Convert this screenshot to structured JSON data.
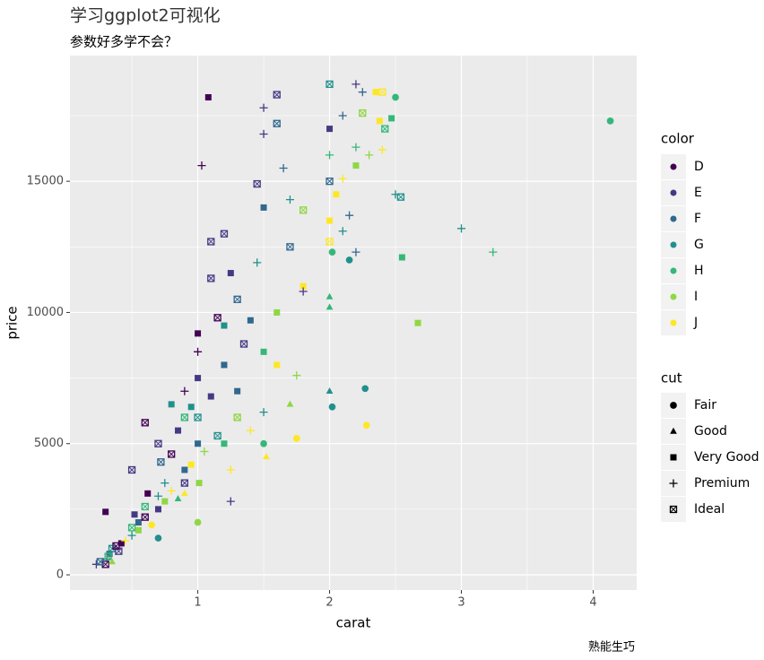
{
  "chart_data": {
    "type": "scatter",
    "title": "学习ggplot2可视化",
    "subtitle": "参数好多学不会？",
    "caption": "熟能生巧",
    "x_label": "carat",
    "y_label": "price",
    "xlim": [
      0.03,
      4.33
    ],
    "ylim": [
      -580,
      19790
    ],
    "xticks": [
      1,
      2,
      3,
      4
    ],
    "yticks": [
      0,
      5000,
      10000,
      15000
    ],
    "grid": true,
    "minor_grid": true,
    "color_legend": {
      "title": "color",
      "names": [
        "D",
        "E",
        "F",
        "G",
        "H",
        "I",
        "J"
      ],
      "colors": [
        "#440154",
        "#443A83",
        "#31688E",
        "#21908C",
        "#35B779",
        "#8FD744",
        "#FDE725"
      ]
    },
    "cut_legend": {
      "title": "cut",
      "names": [
        "Fair",
        "Good",
        "Very Good",
        "Premium",
        "Ideal"
      ],
      "shapes": [
        "circle",
        "triangle",
        "square",
        "plus",
        "square-cross"
      ]
    },
    "x": [
      0.3,
      0.31,
      0.33,
      0.35,
      0.4,
      0.42,
      0.5,
      0.5,
      0.55,
      0.6,
      0.7,
      0.7,
      0.75,
      0.8,
      0.9,
      0.9,
      0.3,
      0.5,
      0.6,
      0.7,
      0.8,
      0.9,
      0.9,
      1.0,
      1.0,
      1.0,
      1.0,
      1.0,
      1.01,
      1.0,
      1.03,
      1.08,
      1.1,
      1.1,
      1.2,
      1.2,
      1.2,
      1.25,
      1.3,
      1.3,
      1.3,
      1.2,
      1.25,
      1.4,
      1.45,
      1.5,
      1.5,
      1.5,
      1.5,
      1.5,
      1.5,
      1.52,
      1.6,
      1.6,
      1.65,
      1.6,
      1.6,
      1.7,
      1.7,
      1.75,
      1.8,
      1.8,
      1.8,
      1.75,
      1.7,
      2.0,
      2.0,
      2.0,
      2.0,
      2.0,
      2.0,
      2.0,
      2.0,
      2.0,
      2.02,
      2.02,
      2.05,
      2.1,
      2.1,
      2.1,
      2.15,
      2.15,
      2.2,
      2.2,
      2.2,
      2.2,
      2.25,
      2.25,
      2.27,
      2.28,
      2.3,
      2.35,
      2.38,
      2.4,
      2.4,
      2.42,
      2.47,
      2.5,
      2.5,
      2.54,
      2.55,
      2.67,
      3.0,
      3.24,
      4.13,
      0.23,
      0.26,
      0.32,
      0.35,
      0.38,
      0.45,
      0.52,
      0.55,
      0.6,
      0.62,
      0.65,
      0.72,
      0.75,
      0.8,
      0.85,
      0.85,
      0.95,
      0.95,
      1.05,
      1.1,
      1.15,
      1.15,
      1.25,
      1.35,
      1.4,
      1.45,
      0.9,
      0.7
    ],
    "y": [
      400,
      600,
      800,
      1000,
      900,
      1200,
      1500,
      1800,
      2000,
      2200,
      2500,
      3000,
      2800,
      3200,
      3500,
      4000,
      2400,
      4000,
      5800,
      5000,
      6500,
      6000,
      7000,
      5000,
      6000,
      7500,
      8500,
      9200,
      3500,
      2000,
      15600,
      18200,
      12700,
      11300,
      9500,
      8000,
      5000,
      4000,
      7000,
      10500,
      6000,
      13000,
      2800,
      5500,
      14900,
      14000,
      17800,
      16800,
      8500,
      6200,
      5000,
      4500,
      18300,
      17200,
      15500,
      10000,
      8000,
      14300,
      12500,
      7600,
      13900,
      11000,
      10800,
      5200,
      6500,
      18700,
      17000,
      16000,
      15000,
      13500,
      12700,
      10600,
      10200,
      7000,
      6400,
      12300,
      14500,
      13100,
      15100,
      17500,
      12000,
      13700,
      16300,
      15600,
      12300,
      18700,
      18400,
      17600,
      7100,
      5700,
      16000,
      18400,
      17300,
      16200,
      18400,
      17000,
      17400,
      18200,
      14500,
      14400,
      12100,
      9600,
      13200,
      12300,
      17300,
      400,
      500,
      700,
      500,
      1100,
      1300,
      2300,
      1700,
      2600,
      3100,
      1900,
      4300,
      3500,
      4600,
      2900,
      5500,
      4200,
      6400,
      4700,
      6800,
      5300,
      9800,
      11500,
      8800,
      9700,
      11900,
      3100,
      1400
    ],
    "point_color": [
      "D",
      "E",
      "F",
      "G",
      "E",
      "D",
      "G",
      "H",
      "F",
      "D",
      "E",
      "G",
      "I",
      "J",
      "E",
      "F",
      "D",
      "E",
      "D",
      "E",
      "G",
      "H",
      "D",
      "F",
      "G",
      "E",
      "D",
      "D",
      "I",
      "I",
      "D",
      "D",
      "E",
      "E",
      "G",
      "F",
      "H",
      "J",
      "F",
      "F",
      "I",
      "E",
      "E",
      "J",
      "E",
      "F",
      "E",
      "E",
      "H",
      "G",
      "H",
      "J",
      "E",
      "F",
      "F",
      "I",
      "J",
      "G",
      "F",
      "I",
      "I",
      "J",
      "E",
      "J",
      "I",
      "G",
      "E",
      "H",
      "F",
      "J",
      "J",
      "H",
      "H",
      "G",
      "G",
      "H",
      "J",
      "G",
      "J",
      "F",
      "G",
      "F",
      "H",
      "I",
      "F",
      "E",
      "F",
      "I",
      "G",
      "J",
      "I",
      "J",
      "J",
      "J",
      "J",
      "H",
      "H",
      "H",
      "G",
      "G",
      "H",
      "I",
      "G",
      "H",
      "H",
      "E",
      "F",
      "H",
      "I",
      "D",
      "J",
      "E",
      "I",
      "H",
      "D",
      "J",
      "F",
      "G",
      "D",
      "H",
      "E",
      "J",
      "G",
      "I",
      "E",
      "G",
      "D",
      "E",
      "E",
      "F",
      "G",
      "J",
      "G"
    ],
    "point_cut": [
      "Ideal",
      "Premium",
      "Very Good",
      "Ideal",
      "Ideal",
      "Very Good",
      "Premium",
      "Ideal",
      "Very Good",
      "Ideal",
      "Very Good",
      "Premium",
      "Very Good",
      "Premium",
      "Ideal",
      "Very Good",
      "Very Good",
      "Ideal",
      "Ideal",
      "Ideal",
      "Very Good",
      "Ideal",
      "Premium",
      "Very Good",
      "Ideal",
      "Very Good",
      "Premium",
      "Very Good",
      "Very Good",
      "Fair",
      "Premium",
      "Very Good",
      "Ideal",
      "Ideal",
      "Very Good",
      "Very Good",
      "Very Good",
      "Premium",
      "Very Good",
      "Ideal",
      "Ideal",
      "Ideal",
      "Premium",
      "Premium",
      "Ideal",
      "Very Good",
      "Premium",
      "Premium",
      "Very Good",
      "Premium",
      "Fair",
      "Good",
      "Ideal",
      "Ideal",
      "Premium",
      "Very Good",
      "Very Good",
      "Premium",
      "Ideal",
      "Premium",
      "Ideal",
      "Very Good",
      "Premium",
      "Fair",
      "Good",
      "Ideal",
      "Very Good",
      "Premium",
      "Ideal",
      "Very Good",
      "Ideal",
      "Good",
      "Good",
      "Good",
      "Fair",
      "Fair",
      "Very Good",
      "Premium",
      "Premium",
      "Premium",
      "Fair",
      "Premium",
      "Premium",
      "Very Good",
      "Premium",
      "Premium",
      "Premium",
      "Ideal",
      "Fair",
      "Fair",
      "Premium",
      "Very Good",
      "Very Good",
      "Premium",
      "Ideal",
      "Ideal",
      "Very Good",
      "Fair",
      "Premium",
      "Ideal",
      "Very Good",
      "Very Good",
      "Premium",
      "Premium",
      "Fair",
      "Premium",
      "Ideal",
      "Ideal",
      "Good",
      "Ideal",
      "Premium",
      "Very Good",
      "Very Good",
      "Ideal",
      "Very Good",
      "Fair",
      "Ideal",
      "Premium",
      "Ideal",
      "Good",
      "Very Good",
      "Very Good",
      "Very Good",
      "Premium",
      "Very Good",
      "Ideal",
      "Ideal",
      "Very Good",
      "Ideal",
      "Very Good",
      "Premium",
      "Good",
      "Fair"
    ]
  }
}
